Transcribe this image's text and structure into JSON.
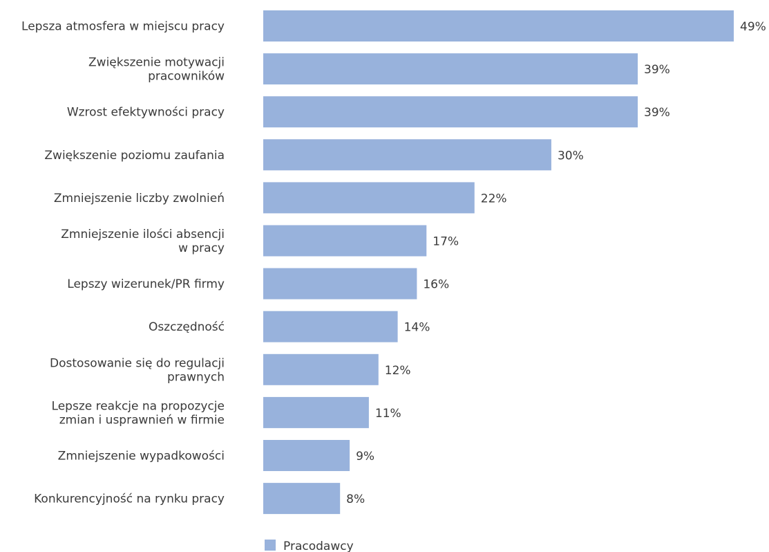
{
  "chart_data": {
    "type": "bar",
    "orientation": "horizontal",
    "categories": [
      [
        "Lepsza atmosfera w miejscu pracy"
      ],
      [
        "Zwiększenie motywacji",
        "pracowników"
      ],
      [
        "Wzrost efektywności pracy"
      ],
      [
        "Zwiększenie poziomu zaufania"
      ],
      [
        "Zmniejszenie liczby zwolnień"
      ],
      [
        "Zmniejszenie ilości absencji",
        "w pracy"
      ],
      [
        "Lepszy wizerunek/PR firmy"
      ],
      [
        "Oszczędność"
      ],
      [
        "Dostosowanie się do regulacji",
        "prawnych"
      ],
      [
        "Lepsze reakcje na propozycje",
        "zmian i usprawnień w firmie"
      ],
      [
        "Zmniejszenie wypadkowości"
      ],
      [
        "Konkurencyjność na rynku pracy"
      ]
    ],
    "series": [
      {
        "name": "Pracodawcy",
        "color": "#98b2dc",
        "values": [
          49,
          39,
          39,
          30,
          22,
          17,
          16,
          14,
          12,
          11,
          9,
          8
        ],
        "labels": [
          "49%",
          "39%",
          "39%",
          "30%",
          "22%",
          "17%",
          "16%",
          "14%",
          "12%",
          "11%",
          "9%",
          "8%"
        ]
      }
    ],
    "xlim": [
      0,
      49
    ],
    "grid": false,
    "legend_position": "bottom"
  }
}
